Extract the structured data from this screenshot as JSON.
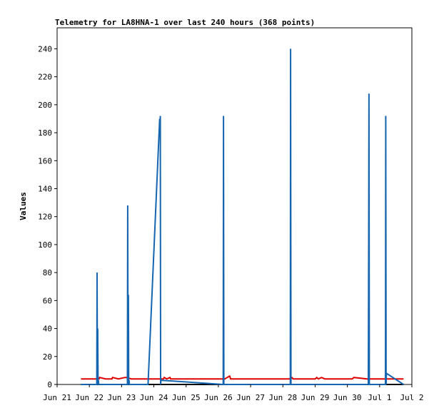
{
  "chart_data": {
    "type": "line",
    "title": "Telemetry for LA8HNA-1 over last 240 hours (368 points)",
    "xlabel": "",
    "ylabel": "Values",
    "ylim": [
      0,
      255
    ],
    "xlim": [
      "Jun 21",
      "Jul 2"
    ],
    "yticks": [
      0,
      20,
      40,
      60,
      80,
      100,
      120,
      140,
      160,
      180,
      200,
      220,
      240
    ],
    "xticks": [
      "Jun 21",
      "Jun 22",
      "Jun 23",
      "Jun 24",
      "Jun 25",
      "Jun 26",
      "Jun 27",
      "Jun 28",
      "Jun 29",
      "Jun 30",
      "Jul 1",
      "Jul 2"
    ],
    "grid": false,
    "colors": {
      "series_a": "#1565b0",
      "series_b": "#dd0000",
      "series_c": "#000000"
    },
    "series": [
      {
        "x": [
          21.74,
          22.23,
          22.24,
          22.25,
          22.26,
          22.27,
          22.28,
          22.29,
          23.18,
          23.19,
          23.2,
          23.21,
          23.22,
          23.23,
          23.24,
          23.82,
          24.18,
          24.19,
          24.2,
          24.21,
          24.22,
          26.15,
          26.16,
          26.17,
          28.23,
          28.24,
          28.25,
          30.65,
          30.66,
          30.67,
          30.68,
          31.18,
          31.19,
          31.2,
          31.21,
          31.74
        ],
        "y": [
          0,
          0,
          80,
          0,
          40,
          0,
          3,
          0,
          0,
          128,
          0,
          64,
          0,
          3,
          0,
          0,
          190,
          180,
          192,
          0,
          3,
          0,
          192,
          0,
          0,
          240,
          0,
          0,
          104,
          208,
          0,
          0,
          192,
          0,
          8,
          0
        ]
      },
      {
        "x": [
          21.74,
          22.2,
          22.3,
          22.32,
          22.5,
          22.7,
          22.72,
          22.9,
          23.1,
          23.15,
          23.3,
          23.32,
          24.1,
          24.3,
          24.32,
          24.4,
          24.5,
          24.52,
          26.2,
          26.35,
          26.38,
          26.5,
          28.2,
          28.28,
          28.32,
          29.0,
          29.05,
          29.1,
          29.2,
          29.3,
          30.15,
          30.2,
          30.6,
          30.7,
          31.74
        ],
        "y": [
          4,
          4,
          4,
          5,
          4,
          4,
          5,
          4,
          5,
          5,
          4,
          4,
          4,
          4,
          5,
          4,
          5,
          4,
          4,
          6,
          4,
          4,
          4,
          5,
          4,
          4,
          5,
          4,
          5,
          4,
          4,
          5,
          4,
          4,
          4
        ]
      },
      {
        "x": [
          21.74,
          31.74
        ],
        "y": [
          0,
          0
        ]
      }
    ]
  }
}
